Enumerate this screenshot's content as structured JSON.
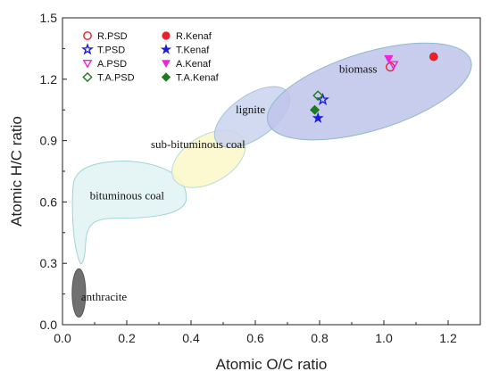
{
  "chart_data": {
    "type": "scatter",
    "xlabel": "Atomic O/C ratio",
    "ylabel": "Atomic H/C ratio",
    "xlim": [
      0.0,
      1.3
    ],
    "ylim": [
      0.0,
      1.5
    ],
    "x_ticks": [
      "0.0",
      "0.2",
      "0.4",
      "0.6",
      "0.8",
      "1.0",
      "1.2"
    ],
    "y_ticks": [
      "0.0",
      "0.3",
      "0.6",
      "0.9",
      "1.2",
      "1.5"
    ],
    "grid": false,
    "legend_position": "top-left",
    "regions": [
      {
        "label": "anthracite",
        "color": "#707070"
      },
      {
        "label": "bituminous  coal",
        "color": "#e2f4f4"
      },
      {
        "label": "sub-bituminous  coal",
        "color": "#fbf8c8"
      },
      {
        "label": "lignite",
        "color": "#c9d4ef"
      },
      {
        "label": "biomass",
        "color": "#c0c4ea"
      }
    ],
    "series": [
      {
        "name": "R.PSD",
        "marker": "circle",
        "filled": false,
        "color": "#e8212a",
        "x": [
          1.02
        ],
        "y": [
          1.26
        ]
      },
      {
        "name": "R.Kenaf",
        "marker": "circle",
        "filled": true,
        "color": "#e8212a",
        "x": [
          1.155
        ],
        "y": [
          1.31
        ]
      },
      {
        "name": "T.PSD",
        "marker": "star",
        "filled": false,
        "color": "#1a1fd6",
        "x": [
          0.81
        ],
        "y": [
          1.1
        ]
      },
      {
        "name": "T.Kenaf",
        "marker": "star",
        "filled": true,
        "color": "#1a1fd6",
        "x": [
          0.795
        ],
        "y": [
          1.01
        ]
      },
      {
        "name": "A.PSD",
        "marker": "triangle-down",
        "filled": false,
        "color": "#ee22dd",
        "x": [
          1.03
        ],
        "y": [
          1.27
        ]
      },
      {
        "name": "A.Kenaf",
        "marker": "triangle-down",
        "filled": true,
        "color": "#ee22dd",
        "x": [
          1.015
        ],
        "y": [
          1.3
        ]
      },
      {
        "name": "T.A.PSD",
        "marker": "diamond",
        "filled": false,
        "color": "#1e7a1e",
        "x": [
          0.795
        ],
        "y": [
          1.12
        ]
      },
      {
        "name": "T.A.Kenaf",
        "marker": "diamond",
        "filled": true,
        "color": "#1e7a1e",
        "x": [
          0.785
        ],
        "y": [
          1.05
        ]
      }
    ]
  }
}
